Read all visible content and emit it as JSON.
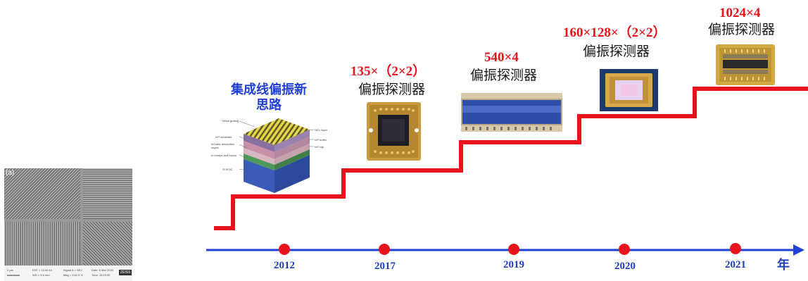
{
  "heading": {
    "line1": "集成线偏振新",
    "line2": "思路"
  },
  "milestones": [
    {
      "size": "135×（2×2）",
      "label": "偏振探测器"
    },
    {
      "size": "540×4",
      "label": "偏振探测器"
    },
    {
      "size": "160×128×（2×2）",
      "label": "偏振探测器"
    },
    {
      "size": "1024×4",
      "label": "偏振探测器"
    }
  ],
  "timeline": {
    "years": [
      "2012",
      "2017",
      "2019",
      "2020",
      "2021"
    ],
    "unit": "年"
  },
  "diagram_labels": [
    "Metal grating",
    "SiO₂ layer",
    "InP substrate",
    "InGaAs absorption region",
    "InP buffer",
    "InP cap",
    "In bumps and epoxy",
    "Si ROIC"
  ],
  "sem_image": {
    "panel": "(a)",
    "scale": "2 µm",
    "info": [
      "EHT = 10.00 kV",
      "WD = 9.5 mm",
      "Signal A = SE2",
      "Mag = 5.61 K X",
      "Date: 5 Mar 2020",
      "Time: 15:19:50",
      "ZEISS"
    ]
  },
  "colors": {
    "step": "#e8141b",
    "axis": "#1f3fd6",
    "dot": "#e8141b"
  }
}
